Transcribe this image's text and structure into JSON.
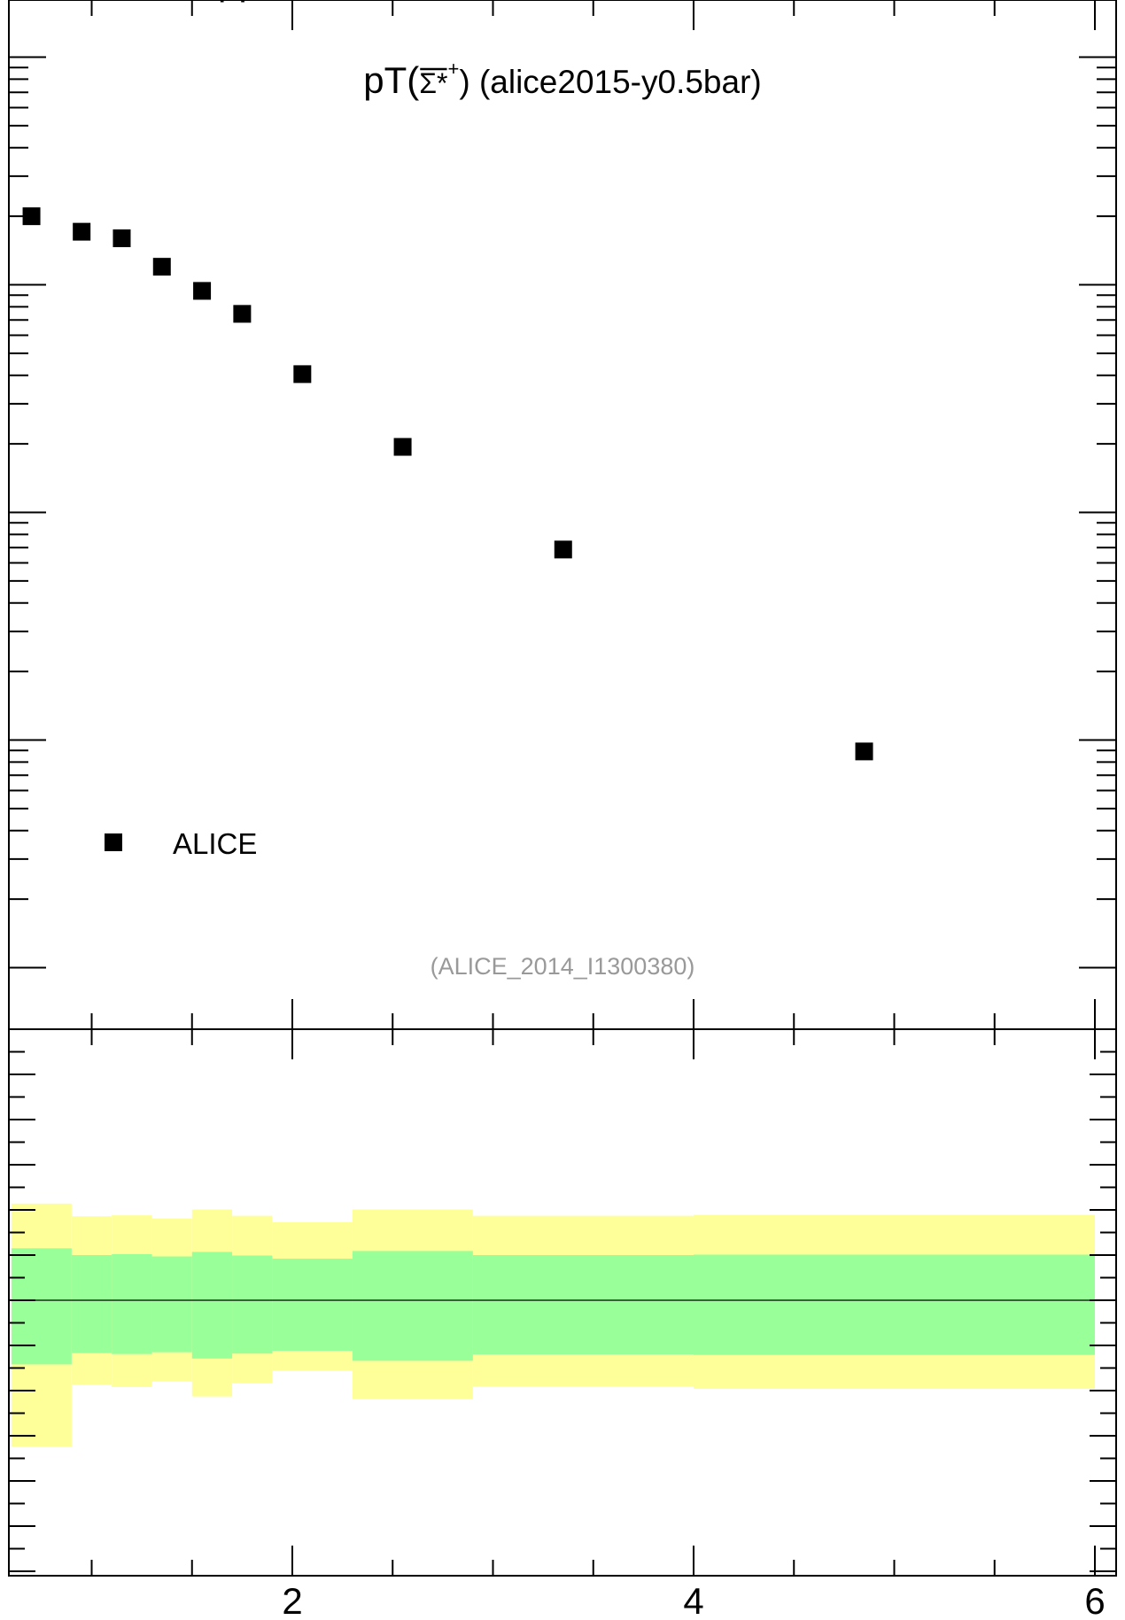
{
  "header_fragment": "pp",
  "chart_data": [
    {
      "panel": "main",
      "type": "scatter",
      "title": "pT(",
      "title_particle": "Σ*",
      "title_superscript": "+",
      "title_suffix": ") (alice2015-y0.5bar)",
      "reference": "(ALICE_2014_I1300380)",
      "xlim": [
        0.55,
        6.1
      ],
      "ylog": true,
      "decades_shown": 4,
      "grid": false,
      "legend_position": "bottom-left",
      "series": [
        {
          "name": "ALICE",
          "marker": "square",
          "color": "#000000",
          "points": [
            {
              "x": 0.7,
              "y": 0.2
            },
            {
              "x": 0.95,
              "y": 0.171
            },
            {
              "x": 1.15,
              "y": 0.16
            },
            {
              "x": 1.35,
              "y": 0.12
            },
            {
              "x": 1.55,
              "y": 0.094
            },
            {
              "x": 1.75,
              "y": 0.0745
            },
            {
              "x": 2.05,
              "y": 0.0405
            },
            {
              "x": 2.55,
              "y": 0.0194
            },
            {
              "x": 3.35,
              "y": 0.00687
            },
            {
              "x": 4.85,
              "y": 0.000891
            }
          ]
        }
      ]
    },
    {
      "panel": "ratio",
      "type": "area",
      "xlim": [
        0.55,
        6.1
      ],
      "ylim": [
        0.4,
        1.6
      ],
      "reference_line": 1.0,
      "colors": {
        "outer_band": "#ffff99",
        "inner_band": "#99ff99",
        "line": "#000000"
      },
      "x_tick_labels": [
        "2",
        "4",
        "6"
      ],
      "bands": [
        {
          "x_low": 0.6,
          "x_high": 0.9,
          "inner": [
            0.858,
            1.115
          ],
          "outer": [
            0.676,
            1.214
          ]
        },
        {
          "x_low": 0.9,
          "x_high": 1.1,
          "inner": [
            0.883,
            1.1
          ],
          "outer": [
            0.813,
            1.186
          ]
        },
        {
          "x_low": 1.1,
          "x_high": 1.3,
          "inner": [
            0.881,
            1.102
          ],
          "outer": [
            0.808,
            1.188
          ]
        },
        {
          "x_low": 1.3,
          "x_high": 1.5,
          "inner": [
            0.885,
            1.097
          ],
          "outer": [
            0.82,
            1.181
          ]
        },
        {
          "x_low": 1.5,
          "x_high": 1.7,
          "inner": [
            0.871,
            1.107
          ],
          "outer": [
            0.787,
            1.201
          ]
        },
        {
          "x_low": 1.7,
          "x_high": 1.9,
          "inner": [
            0.882,
            1.099
          ],
          "outer": [
            0.816,
            1.187
          ]
        },
        {
          "x_low": 1.9,
          "x_high": 2.3,
          "inner": [
            0.888,
            1.092
          ],
          "outer": [
            0.844,
            1.173
          ]
        },
        {
          "x_low": 2.3,
          "x_high": 2.9,
          "inner": [
            0.866,
            1.109
          ],
          "outer": [
            0.781,
            1.201
          ]
        },
        {
          "x_low": 2.9,
          "x_high": 4.0,
          "inner": [
            0.88,
            1.1
          ],
          "outer": [
            0.809,
            1.187
          ]
        },
        {
          "x_low": 4.0,
          "x_high": 6.0,
          "inner": [
            0.879,
            1.101
          ],
          "outer": [
            0.804,
            1.189
          ]
        }
      ]
    }
  ]
}
